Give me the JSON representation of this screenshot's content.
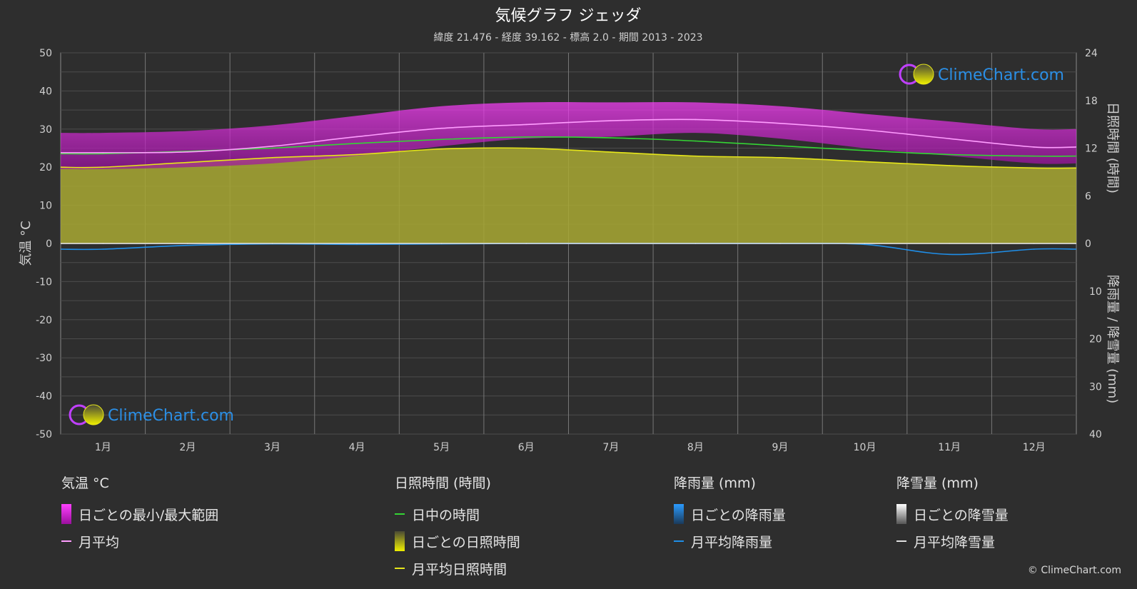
{
  "chart_data": {
    "type": "area",
    "title": "気候グラフ ジェッダ",
    "subtitle": "緯度 21.476 - 経度 39.162 - 標高 2.0 - 期間 2013 - 2023",
    "categories": [
      "1月",
      "2月",
      "3月",
      "4月",
      "5月",
      "6月",
      "7月",
      "8月",
      "9月",
      "10月",
      "11月",
      "12月"
    ],
    "axes": {
      "left": {
        "label": "気温 °C",
        "range": [
          -50,
          50
        ],
        "ticks": [
          "50",
          "40",
          "30",
          "20",
          "10",
          "0",
          "-10",
          "-20",
          "-30",
          "-40",
          "-50"
        ]
      },
      "right_top": {
        "label": "日照時間 (時間)",
        "range": [
          0,
          24
        ],
        "ticks": [
          "24",
          "18",
          "12",
          "6",
          "0"
        ]
      },
      "right_bottom": {
        "label": "降雨量 / 降雪量 (mm)",
        "range": [
          0,
          40
        ],
        "ticks": [
          "10",
          "20",
          "30",
          "40"
        ]
      }
    },
    "grid": true,
    "series": [
      {
        "name": "日ごとの最小/最大範囲",
        "type": "band",
        "unit": "°C",
        "min": [
          19.5,
          20,
          21,
          23,
          25.5,
          27.5,
          28,
          29,
          27.5,
          25,
          23,
          21
        ],
        "max": [
          29,
          29.5,
          31,
          33.5,
          36,
          37,
          37,
          37,
          36,
          34,
          32,
          30
        ]
      },
      {
        "name": "月平均",
        "type": "line",
        "unit": "°C",
        "values": [
          23.8,
          24.0,
          25.5,
          28.0,
          30.2,
          31.2,
          32.2,
          32.5,
          31.5,
          29.8,
          27.5,
          25.3
        ]
      },
      {
        "name": "日中の時間",
        "type": "line",
        "unit": "時間",
        "values": [
          11.3,
          11.6,
          12.0,
          12.6,
          13.1,
          13.4,
          13.3,
          12.9,
          12.3,
          11.7,
          11.2,
          11.0
        ]
      },
      {
        "name": "月平均日照時間",
        "type": "line",
        "unit": "時間",
        "values": [
          9.6,
          10.2,
          10.8,
          11.2,
          11.9,
          12.0,
          11.5,
          11.0,
          10.8,
          10.3,
          9.8,
          9.5
        ]
      },
      {
        "name": "月平均降雨量",
        "type": "line",
        "unit": "mm",
        "values": [
          1.2,
          0.4,
          0.1,
          0.2,
          0.1,
          0.0,
          0.0,
          0.0,
          0.0,
          0.2,
          2.3,
          1.2
        ]
      },
      {
        "name": "月平均降雪量",
        "type": "line",
        "unit": "mm",
        "values": [
          0,
          0,
          0,
          0,
          0,
          0,
          0,
          0,
          0,
          0,
          0,
          0
        ]
      }
    ],
    "legend_placement": "bottom"
  },
  "legend": {
    "temp": {
      "head": "気温 °C",
      "range": "日ごとの最小/最大範囲",
      "avg": "月平均"
    },
    "sun": {
      "head": "日照時間 (時間)",
      "daylight": "日中の時間",
      "daily": "日ごとの日照時間",
      "avg": "月平均日照時間"
    },
    "rain": {
      "head": "降雨量 (mm)",
      "daily": "日ごとの降雨量",
      "avg": "月平均降雨量"
    },
    "snow": {
      "head": "降雪量 (mm)",
      "daily": "日ごとの降雪量",
      "avg": "月平均降雪量"
    }
  },
  "brand": {
    "name": "ClimeChart.com",
    "copyright": "© ClimeChart.com"
  },
  "colors": {
    "background": "#2e2e2e",
    "temp_band": "#d21fd8",
    "temp_avg": "#ff9dff",
    "daylight": "#34d534",
    "sunshine_fill": "#a8a832",
    "sunshine_avg": "#e6e61a",
    "rain": "#1f8ee8",
    "snow": "#e0e0e0",
    "brand": "#2b8fe6"
  }
}
